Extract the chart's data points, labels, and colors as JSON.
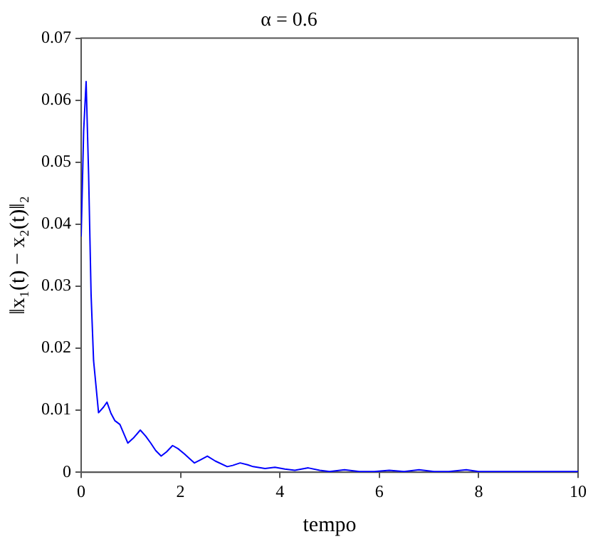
{
  "chart_data": {
    "type": "line",
    "title": "α = 0.6",
    "xlabel": "tempo",
    "ylabel": "‖x₁(t) − x₂(t)‖₂",
    "x": [
      0,
      0.05,
      0.1,
      0.15,
      0.2,
      0.25,
      0.35,
      0.45,
      0.52,
      0.6,
      0.68,
      0.78,
      0.94,
      1.05,
      1.19,
      1.3,
      1.4,
      1.5,
      1.61,
      1.72,
      1.84,
      1.95,
      2.07,
      2.18,
      2.28,
      2.4,
      2.54,
      2.7,
      2.94,
      3.05,
      3.2,
      3.35,
      3.46,
      3.7,
      3.9,
      4.1,
      4.3,
      4.57,
      4.8,
      5.0,
      5.3,
      5.6,
      5.9,
      6.2,
      6.5,
      6.8,
      7.1,
      7.4,
      7.75,
      8.0,
      8.5,
      9,
      9.5,
      10
    ],
    "values": [
      0.038,
      0.055,
      0.063,
      0.048,
      0.0286,
      0.018,
      0.0096,
      0.0105,
      0.0113,
      0.0095,
      0.0083,
      0.0077,
      0.0047,
      0.0055,
      0.0068,
      0.0058,
      0.0047,
      0.0035,
      0.0026,
      0.0033,
      0.0043,
      0.0038,
      0.003,
      0.0022,
      0.0015,
      0.002,
      0.0026,
      0.0018,
      0.0009,
      0.0011,
      0.0015,
      0.0012,
      0.0009,
      0.0006,
      0.0008,
      0.0005,
      0.0003,
      0.0007,
      0.0003,
      0.0001,
      0.0004,
      0.0001,
      0.0001,
      0.0003,
      0.0001,
      0.0004,
      0.0001,
      0.0001,
      0.0004,
      0.0001,
      0.0001,
      0.0001,
      0.0001,
      0.0001
    ],
    "color": "#0000ff",
    "xlim": [
      0,
      10
    ],
    "xticks": [
      0,
      2,
      4,
      6,
      8,
      10
    ],
    "ylim": [
      0,
      0.07
    ],
    "yticks": [
      0,
      0.01,
      0.02,
      0.03,
      0.04,
      0.05,
      0.06,
      0.07
    ],
    "grid": false,
    "legend": false,
    "marker": "none",
    "line_style": "solid"
  }
}
